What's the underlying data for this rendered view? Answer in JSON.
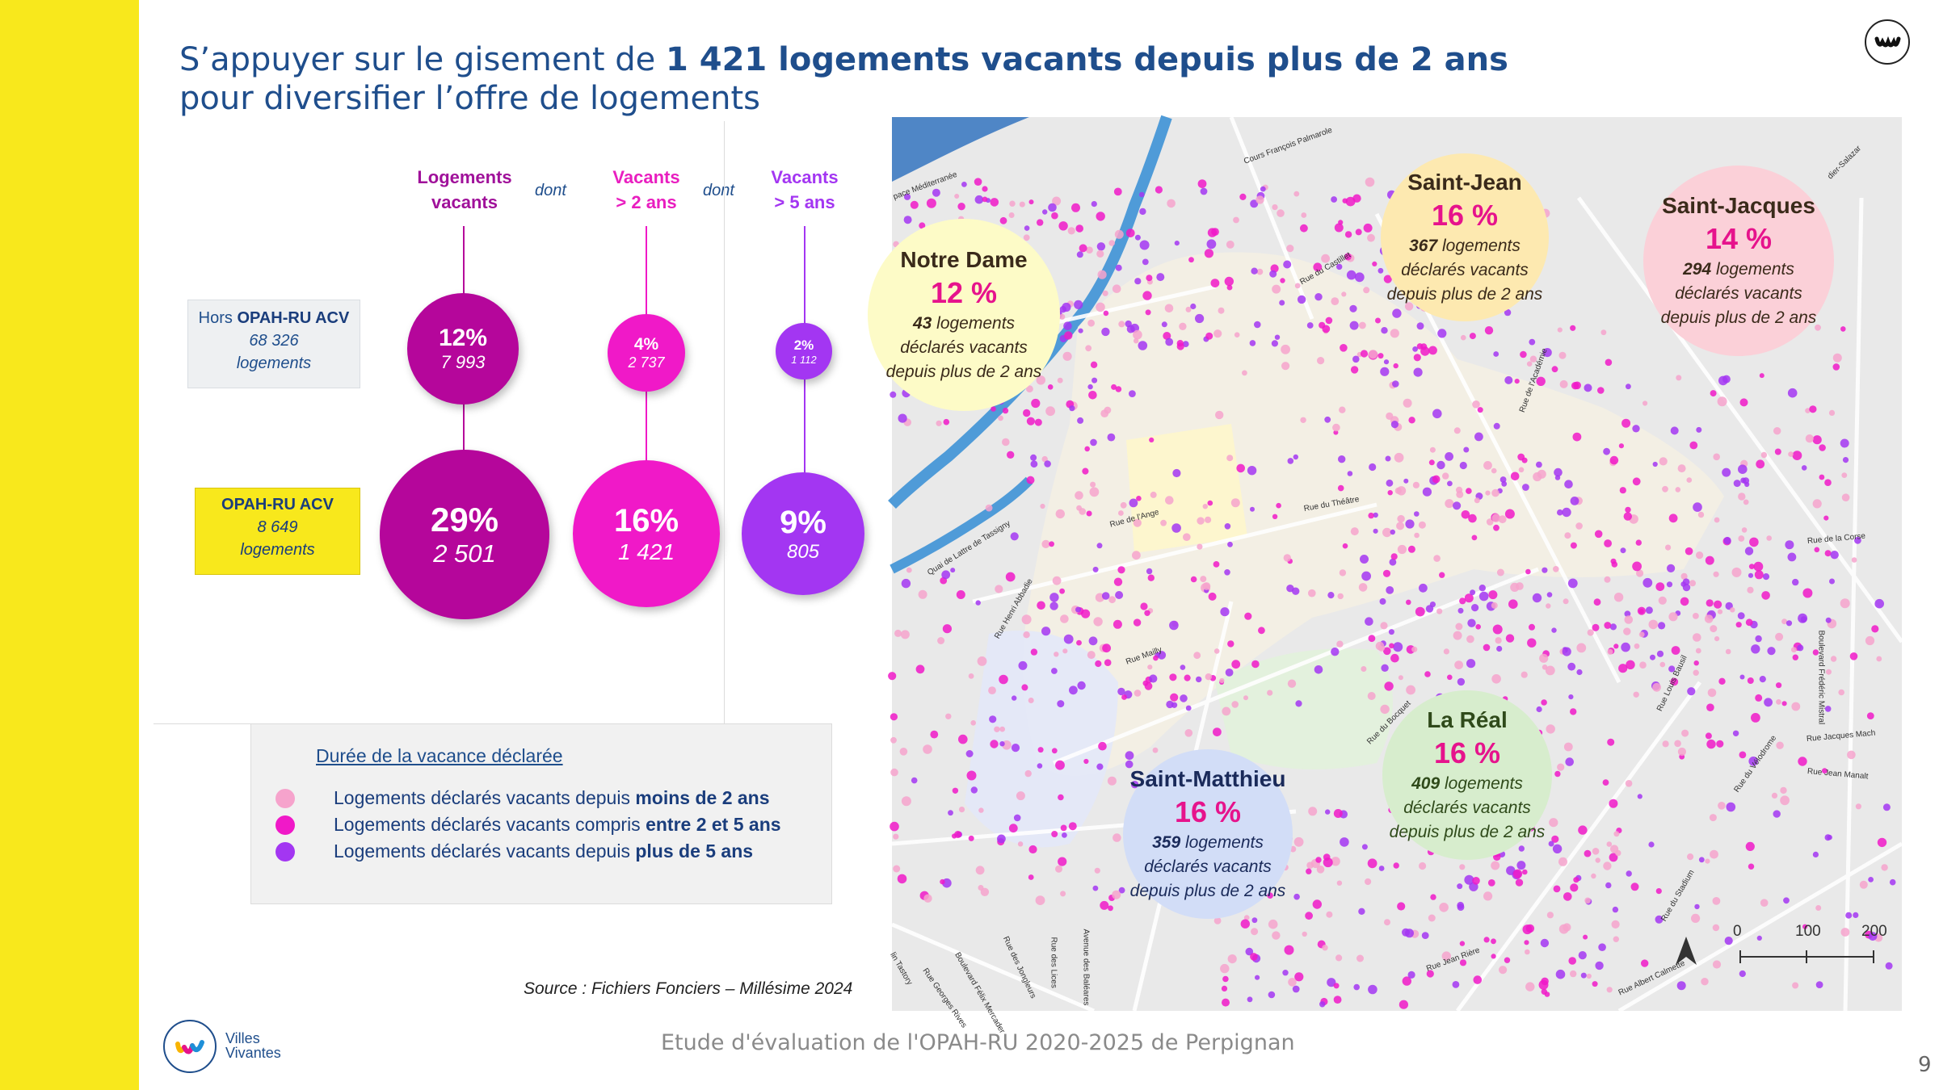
{
  "title": {
    "part1": "S’appuyer sur le gisement de ",
    "bold": "1 421 logements vacants depuis plus de 2 ans",
    "line2": "pour diversifier l’offre de logements"
  },
  "columns": {
    "col1": {
      "line1": "Logements",
      "line2": "vacants"
    },
    "col2": {
      "line1": "Vacants",
      "line2": "> 2 ans"
    },
    "col3": {
      "line1": "Vacants",
      "line2": "> 5 ans"
    },
    "dont": "dont"
  },
  "rows": {
    "hors": {
      "prefix": "Hors ",
      "name": "OPAH-RU ACV",
      "count": "68 326",
      "unit": "logements"
    },
    "opah": {
      "name": "OPAH-RU ACV",
      "count": "8 649",
      "unit": "logements"
    }
  },
  "bubbles": {
    "hors_vacants": {
      "pct": "12%",
      "num": "7 993"
    },
    "hors_2ans": {
      "pct": "4%",
      "num": "2 737"
    },
    "hors_5ans": {
      "pct": "2%",
      "num": "1 112"
    },
    "opah_vacants": {
      "pct": "29%",
      "num": "2 501"
    },
    "opah_2ans": {
      "pct": "16%",
      "num": "1 421"
    },
    "opah_5ans": {
      "pct": "9%",
      "num": "805"
    }
  },
  "colors": {
    "dark_magenta": "#b5069b",
    "magenta": "#f019c8",
    "violet": "#a336f2",
    "light_pink": "#f6a3cc",
    "accent_pink": "#e6138c",
    "brand_yellow": "#f8e81c",
    "navy": "#1f4e8c"
  },
  "legend": {
    "title": "Durée de la vacance déclarée",
    "items": [
      {
        "pre": "Logements déclarés vacants depuis ",
        "bold": "moins de 2 ans",
        "color": "#f6a3cc"
      },
      {
        "pre": "Logements déclarés vacants compris ",
        "bold": "entre 2 et 5 ans",
        "color": "#f019c8"
      },
      {
        "pre": "Logements déclarés vacants depuis ",
        "bold": "plus de 5 ans",
        "color": "#a336f2"
      }
    ]
  },
  "source": "Source : Fichiers Fonciers – Millésime 2024",
  "footer": "Etude d'évaluation de l'OPAH-RU 2020-2025 de Perpignan",
  "page_number": "9",
  "brand": {
    "line1": "Villes",
    "line2": "Vivantes"
  },
  "map": {
    "districts": [
      {
        "name": "Saint-Jean",
        "pct": "16 %",
        "count": "367",
        "l1": " logements",
        "l2": "déclarés vacants",
        "l3": "depuis plus de 2 ans",
        "color": "#fde9b0"
      },
      {
        "name": "Saint-Jacques",
        "pct": "14 %",
        "count": "294",
        "l1": " logements",
        "l2": "déclarés vacants",
        "l3": "depuis plus de 2 ans",
        "color": "#fbd0d8"
      },
      {
        "name": "Notre Dame",
        "pct": "12 %",
        "count": "43",
        "l1": " logements",
        "l2": "déclarés vacants",
        "l3": "depuis plus de 2 ans",
        "color": "#fdfbc7"
      },
      {
        "name": "La Réal",
        "pct": "16 %",
        "count": "409",
        "l1": " logements",
        "l2": "déclarés vacants",
        "l3": "depuis plus de 2 ans",
        "color": "#d7edcd"
      },
      {
        "name": "Saint-Matthieu",
        "pct": "16 %",
        "count": "359",
        "l1": " logements",
        "l2": "déclarés vacants",
        "l3": "depuis plus de 2 ans",
        "color": "#d2ddf7"
      }
    ],
    "scale": {
      "labels": [
        "0",
        "100",
        "200"
      ]
    },
    "streets": [
      "Cours François Palmarole",
      "pace Méditerranée",
      "Rue du Castillet",
      "Rue de l'Ange",
      "Rue de l'Académie",
      "Quai de Lattre de Tassigny",
      "Rue Henri Abbadie",
      "Rue Mailly",
      "Rue du Bocquet",
      "Rue Louis Bausil",
      "Rue de la Corse",
      "Boulevard Frédéric Mistral",
      "Rue Jacques Mach",
      "Rue Jean Manalt",
      "Rue du Vélodrome",
      "Rue du Stadium",
      "Rue Albert Calmette",
      "Rue Jean Rière",
      "Avenue des Baléares",
      "Rue des Lices",
      "Rue des Jongleurs",
      "Boulevard Félix Mercader",
      "Rue Georges Rives",
      "Rue du Théâtre",
      "lin Tastory",
      "dier-Salazar"
    ]
  }
}
